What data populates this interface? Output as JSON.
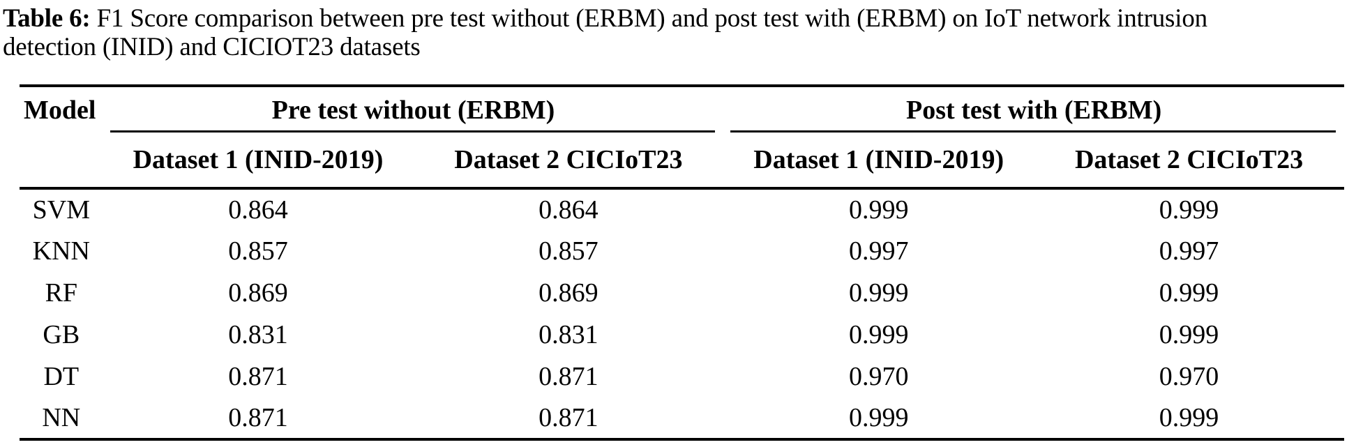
{
  "caption": {
    "label": "Table 6:",
    "line1": "F1 Score comparison between pre test without (ERBM) and post test with (ERBM) on IoT network intrusion",
    "line2": "detection (INID) and CICIOT23 datasets"
  },
  "table": {
    "model_column_header": "Model",
    "group_headers": [
      "Pre test without (ERBM)",
      "Post test with (ERBM)"
    ],
    "sub_headers": [
      "Dataset 1 (INID-2019)",
      "Dataset 2 CICIoT23",
      "Dataset 1 (INID-2019)",
      "Dataset 2 CICIoT23"
    ],
    "rows": [
      {
        "model": "SVM",
        "values": [
          "0.864",
          "0.864",
          "0.999",
          "0.999"
        ]
      },
      {
        "model": "KNN",
        "values": [
          "0.857",
          "0.857",
          "0.997",
          "0.997"
        ]
      },
      {
        "model": "RF",
        "values": [
          "0.869",
          "0.869",
          "0.999",
          "0.999"
        ]
      },
      {
        "model": "GB",
        "values": [
          "0.831",
          "0.831",
          "0.999",
          "0.999"
        ]
      },
      {
        "model": "DT",
        "values": [
          "0.871",
          "0.871",
          "0.970",
          "0.970"
        ]
      },
      {
        "model": "NN",
        "values": [
          "0.871",
          "0.871",
          "0.999",
          "0.999"
        ]
      }
    ]
  },
  "colors": {
    "text": "#000000",
    "background": "#ffffff",
    "rule": "#000000"
  }
}
